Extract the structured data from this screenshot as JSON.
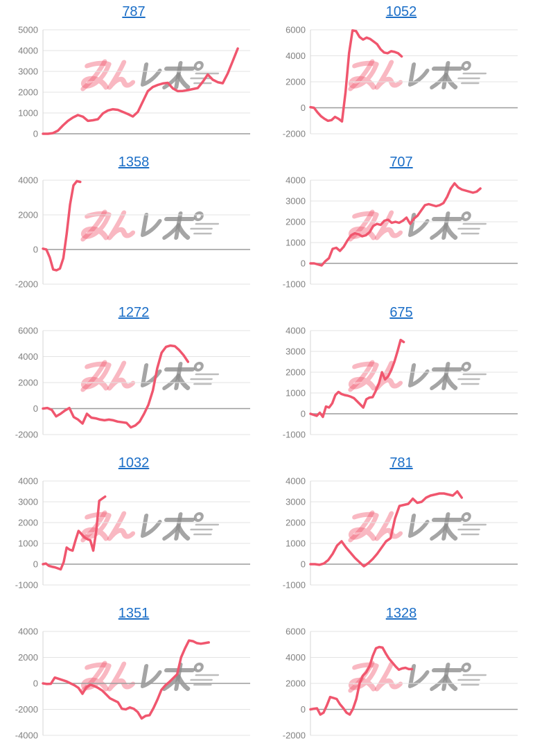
{
  "page": {
    "background": "#ffffff",
    "description_visible_elements": "ten line charts in two columns, each titled by a blue underlined machine number link"
  },
  "watermark": {
    "text": "みんレポ",
    "pink_color": "#f0566e",
    "gray_color": "#8f8f8f"
  },
  "chart_style": {
    "line_color": "#f0566e",
    "grid_color": "#e3e3e3",
    "zero_line_color": "#9c9c9c",
    "axis_line_color": "#d6d6d6",
    "tick_label_color": "#808080",
    "title_link_color": "#1b6ec7"
  },
  "chart_data": [
    {
      "type": "line",
      "title": "787",
      "ylim": [
        0,
        5000
      ],
      "yticks": [
        0,
        1000,
        2000,
        3000,
        4000,
        5000
      ],
      "grid": true,
      "x_end_fraction": 0.94,
      "values": [
        0,
        0,
        30,
        150,
        400,
        620,
        780,
        900,
        820,
        620,
        650,
        700,
        980,
        1120,
        1180,
        1150,
        1050,
        950,
        830,
        1050,
        1550,
        2050,
        2250,
        2350,
        2420,
        2450,
        2180,
        2050,
        2060,
        2100,
        2150,
        2200,
        2500,
        2850,
        2600,
        2480,
        2430,
        2900,
        3500,
        4100
      ]
    },
    {
      "type": "line",
      "title": "1052",
      "ylim": [
        -2000,
        6000
      ],
      "yticks": [
        -2000,
        0,
        2000,
        4000,
        6000
      ],
      "grid": true,
      "x_end_fraction": 0.44,
      "values": [
        50,
        0,
        -350,
        -650,
        -850,
        -1000,
        -950,
        -700,
        -850,
        -1050,
        1200,
        4200,
        5950,
        5900,
        5450,
        5250,
        5400,
        5300,
        5100,
        4900,
        4500,
        4250,
        4200,
        4350,
        4300,
        4200,
        3950
      ]
    },
    {
      "type": "line",
      "title": "1358",
      "ylim": [
        -2000,
        4000
      ],
      "yticks": [
        -2000,
        0,
        2000,
        4000
      ],
      "grid": true,
      "x_end_fraction": 0.18,
      "values": [
        50,
        0,
        -450,
        -1150,
        -1200,
        -1100,
        -500,
        900,
        2600,
        3700,
        3950,
        3900
      ]
    },
    {
      "type": "line",
      "title": "707",
      "ylim": [
        -1000,
        4000
      ],
      "yticks": [
        -1000,
        0,
        1000,
        2000,
        3000,
        4000
      ],
      "grid": true,
      "x_end_fraction": 0.82,
      "values": [
        0,
        0,
        -50,
        -100,
        100,
        250,
        700,
        750,
        600,
        800,
        1100,
        1350,
        1450,
        1400,
        1300,
        1350,
        1500,
        1800,
        1900,
        1850,
        2050,
        2100,
        1950,
        2000,
        1950,
        2050,
        2200,
        1900,
        2150,
        2300,
        2550,
        2800,
        2850,
        2800,
        2750,
        2800,
        2900,
        3200,
        3600,
        3850,
        3650,
        3550,
        3500,
        3450,
        3400,
        3450,
        3600
      ]
    },
    {
      "type": "line",
      "title": "1272",
      "ylim": [
        -2000,
        6000
      ],
      "yticks": [
        -2000,
        0,
        2000,
        4000,
        6000
      ],
      "grid": true,
      "x_end_fraction": 0.7,
      "values": [
        0,
        50,
        -100,
        -600,
        -400,
        -150,
        50,
        -650,
        -850,
        -1150,
        -400,
        -700,
        -750,
        -850,
        -900,
        -850,
        -900,
        -1000,
        -1050,
        -1100,
        -1450,
        -1300,
        -1000,
        -400,
        300,
        1400,
        3100,
        4300,
        4750,
        4850,
        4800,
        4500,
        4100,
        3600
      ]
    },
    {
      "type": "line",
      "title": "675",
      "ylim": [
        -1000,
        4000
      ],
      "yticks": [
        -1000,
        0,
        1000,
        2000,
        3000,
        4000
      ],
      "grid": true,
      "x_end_fraction": 0.45,
      "values": [
        0,
        -50,
        -100,
        50,
        -150,
        350,
        300,
        500,
        900,
        1050,
        950,
        900,
        870,
        820,
        750,
        600,
        450,
        300,
        700,
        780,
        800,
        1100,
        1450,
        2000,
        1650,
        1800,
        2100,
        2500,
        3000,
        3550,
        3450
      ]
    },
    {
      "type": "line",
      "title": "1032",
      "ylim": [
        -1000,
        4000
      ],
      "yticks": [
        -1000,
        0,
        1000,
        2000,
        3000,
        4000
      ],
      "grid": true,
      "x_end_fraction": 0.3,
      "values": [
        0,
        30,
        -80,
        -120,
        -150,
        -200,
        -250,
        100,
        800,
        700,
        650,
        1150,
        1600,
        1450,
        1300,
        1200,
        1150,
        650,
        1600,
        3050,
        3150,
        3250
      ]
    },
    {
      "type": "line",
      "title": "781",
      "ylim": [
        -1000,
        4000
      ],
      "yticks": [
        -1000,
        0,
        1000,
        2000,
        3000,
        4000
      ],
      "grid": true,
      "x_end_fraction": 0.73,
      "values": [
        0,
        0,
        -30,
        30,
        200,
        500,
        900,
        1100,
        800,
        550,
        300,
        100,
        -100,
        50,
        250,
        500,
        800,
        1100,
        1250,
        2200,
        2800,
        2850,
        2900,
        3150,
        2950,
        3000,
        3200,
        3300,
        3350,
        3400,
        3400,
        3350,
        3300,
        3500,
        3200
      ]
    },
    {
      "type": "line",
      "title": "1351",
      "ylim": [
        -4000,
        4000
      ],
      "yticks": [
        -4000,
        -2000,
        0,
        2000,
        4000
      ],
      "grid": true,
      "x_end_fraction": 0.8,
      "values": [
        0,
        -50,
        -30,
        450,
        350,
        250,
        150,
        0,
        -150,
        -350,
        -800,
        -300,
        -100,
        -200,
        -350,
        -550,
        -850,
        -1150,
        -1300,
        -1450,
        -1950,
        -2000,
        -1850,
        -1950,
        -2200,
        -2700,
        -2500,
        -2450,
        -1900,
        -1250,
        -500,
        -150,
        100,
        400,
        700,
        2000,
        2700,
        3300,
        3250,
        3100,
        3050,
        3100,
        3150
      ]
    },
    {
      "type": "line",
      "title": "1328",
      "ylim": [
        -2000,
        6000
      ],
      "yticks": [
        -2000,
        0,
        2000,
        4000,
        6000
      ],
      "grid": true,
      "x_end_fraction": 0.49,
      "values": [
        0,
        50,
        80,
        -400,
        -250,
        300,
        950,
        880,
        800,
        400,
        100,
        -250,
        -400,
        50,
        800,
        2000,
        2600,
        2850,
        3300,
        4100,
        4700,
        4800,
        4750,
        4300,
        3900,
        3600,
        3300,
        3050,
        3150,
        3200,
        3100,
        3100
      ]
    }
  ]
}
